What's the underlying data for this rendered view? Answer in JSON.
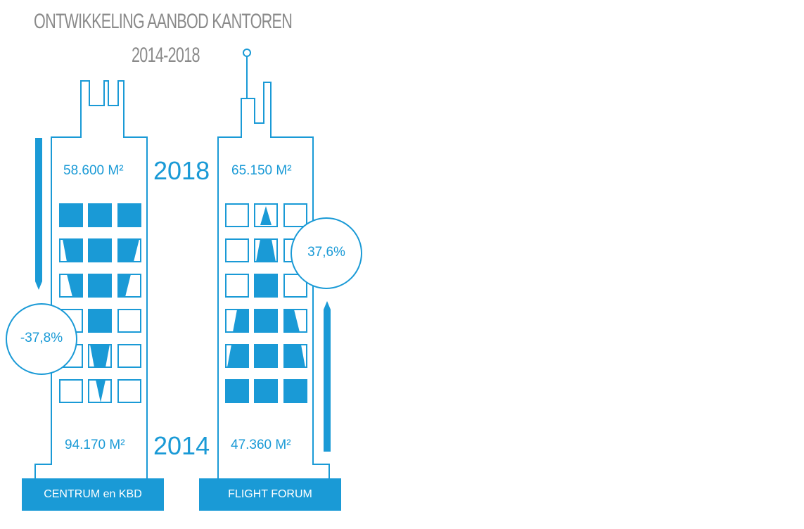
{
  "title": {
    "line1": "ONTWIKKELING AANBOD KANTOREN",
    "line2": "2014-2018"
  },
  "years": {
    "top": "2018",
    "bottom": "2014"
  },
  "buildings": {
    "left": {
      "name": "CENTRUM en KBD",
      "area_2018": "58.600 M²",
      "area_2014": "94.170 M²",
      "change": "-37,8%"
    },
    "right": {
      "name": "FLIGHT FORUM",
      "area_2018": "65.150 M²",
      "area_2014": "47.360 M²",
      "change": "37,6%"
    }
  },
  "colors": {
    "accent": "#1a9ad6",
    "title": "#8a8a8a"
  }
}
